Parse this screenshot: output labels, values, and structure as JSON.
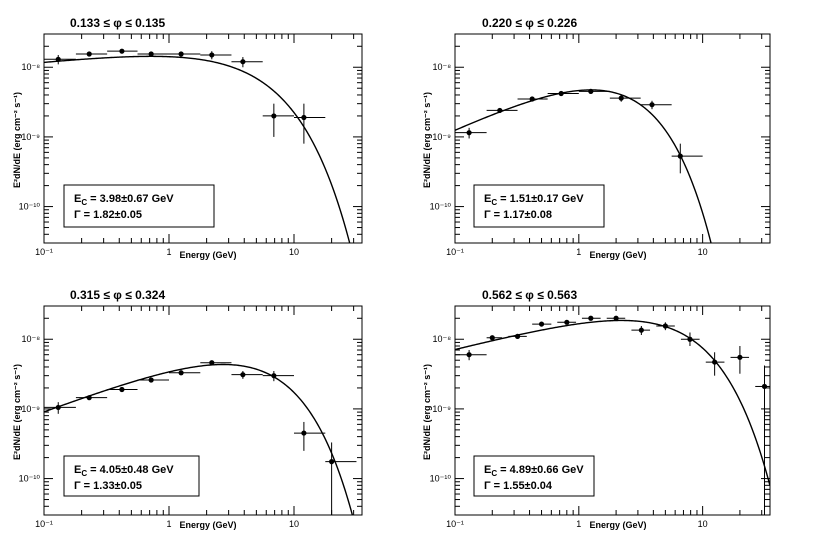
{
  "chart_data": [
    {
      "type": "scatter",
      "title": "0.133 ≤ φ ≤ 0.135",
      "xlabel": "Energy (GeV)",
      "ylabel": "E²dN/dE (erg cm⁻² s⁻¹)",
      "xscale": "log",
      "yscale": "log",
      "xlim": [
        0.1,
        35
      ],
      "ylim": [
        3e-11,
        3e-08
      ],
      "xticks": [
        {
          "v": 0.1,
          "t": "10⁻¹"
        },
        {
          "v": 1,
          "t": "1"
        },
        {
          "v": 10,
          "t": "10"
        }
      ],
      "yticks": [
        {
          "v": 1e-10,
          "t": "10⁻¹⁰"
        },
        {
          "v": 1e-09,
          "t": "10⁻⁹"
        },
        {
          "v": 1e-08,
          "t": "10⁻⁸"
        }
      ],
      "fit": {
        "model": "power-law with exponential cutoff",
        "gamma": 1.82,
        "ecut": 3.98,
        "norm": 1.36e-08,
        "e0": 0.3
      },
      "legend": {
        "line1_prefix": "E",
        "line1_sub": "C",
        "line1_rest": " = 3.98±0.67 GeV",
        "line2": "Γ = 1.82±0.05"
      },
      "points": [
        {
          "x": 0.13,
          "xlo": 0.1,
          "xhi": 0.18,
          "y": 1.3e-08,
          "ylo": 1.1e-08,
          "yhi": 1.5e-08
        },
        {
          "x": 0.23,
          "xlo": 0.18,
          "xhi": 0.32,
          "y": 1.55e-08,
          "ylo": 1.45e-08,
          "yhi": 1.65e-08
        },
        {
          "x": 0.42,
          "xlo": 0.32,
          "xhi": 0.56,
          "y": 1.7e-08,
          "ylo": 1.6e-08,
          "yhi": 1.8e-08
        },
        {
          "x": 0.72,
          "xlo": 0.56,
          "xhi": 1.0,
          "y": 1.55e-08,
          "ylo": 1.45e-08,
          "yhi": 1.65e-08
        },
        {
          "x": 1.25,
          "xlo": 1.0,
          "xhi": 1.78,
          "y": 1.55e-08,
          "ylo": 1.45e-08,
          "yhi": 1.65e-08
        },
        {
          "x": 2.2,
          "xlo": 1.78,
          "xhi": 3.16,
          "y": 1.5e-08,
          "ylo": 1.3e-08,
          "yhi": 1.7e-08
        },
        {
          "x": 3.9,
          "xlo": 3.16,
          "xhi": 5.62,
          "y": 1.2e-08,
          "ylo": 1e-08,
          "yhi": 1.4e-08
        },
        {
          "x": 6.9,
          "xlo": 5.62,
          "xhi": 10,
          "y": 2e-09,
          "ylo": 1e-09,
          "yhi": 3e-09
        },
        {
          "x": 12,
          "xlo": 10,
          "xhi": 17.8,
          "y": 1.9e-09,
          "ylo": 8e-10,
          "yhi": 3e-09
        }
      ]
    },
    {
      "type": "scatter",
      "title": "0.220 ≤ φ ≤ 0.226",
      "xlabel": "Energy (GeV)",
      "ylabel": "E²dN/dE (erg cm⁻² s⁻¹)",
      "xscale": "log",
      "yscale": "log",
      "xlim": [
        0.1,
        35
      ],
      "ylim": [
        3e-11,
        3e-08
      ],
      "xticks": [
        {
          "v": 0.1,
          "t": "10⁻¹"
        },
        {
          "v": 1,
          "t": "1"
        },
        {
          "v": 10,
          "t": "10"
        }
      ],
      "yticks": [
        {
          "v": 1e-10,
          "t": "10⁻¹⁰"
        },
        {
          "v": 1e-09,
          "t": "10⁻⁹"
        },
        {
          "v": 1e-08,
          "t": "10⁻⁸"
        }
      ],
      "fit": {
        "model": "power-law with exponential cutoff",
        "gamma": 1.17,
        "ecut": 1.51,
        "norm": 3.63e-09,
        "e0": 0.5
      },
      "legend": {
        "line1_prefix": "E",
        "line1_sub": "C",
        "line1_rest": " = 1.51±0.17 GeV",
        "line2": "Γ = 1.17±0.08"
      },
      "points": [
        {
          "x": 0.13,
          "xlo": 0.1,
          "xhi": 0.18,
          "y": 1.15e-09,
          "ylo": 9.5e-10,
          "yhi": 1.35e-09
        },
        {
          "x": 0.23,
          "xlo": 0.18,
          "xhi": 0.32,
          "y": 2.4e-09,
          "ylo": 2.2e-09,
          "yhi": 2.6e-09
        },
        {
          "x": 0.42,
          "xlo": 0.32,
          "xhi": 0.56,
          "y": 3.5e-09,
          "ylo": 3.3e-09,
          "yhi": 3.7e-09
        },
        {
          "x": 0.72,
          "xlo": 0.56,
          "xhi": 1.0,
          "y": 4.2e-09,
          "ylo": 4e-09,
          "yhi": 4.4e-09
        },
        {
          "x": 1.25,
          "xlo": 1.0,
          "xhi": 1.78,
          "y": 4.5e-09,
          "ylo": 4.2e-09,
          "yhi": 4.8e-09
        },
        {
          "x": 2.2,
          "xlo": 1.78,
          "xhi": 3.16,
          "y": 3.6e-09,
          "ylo": 3.2e-09,
          "yhi": 4e-09
        },
        {
          "x": 3.9,
          "xlo": 3.16,
          "xhi": 5.62,
          "y": 2.9e-09,
          "ylo": 2.5e-09,
          "yhi": 3.3e-09
        },
        {
          "x": 6.6,
          "xlo": 5.62,
          "xhi": 10,
          "y": 5.3e-10,
          "ylo": 3e-10,
          "yhi": 8e-10
        }
      ]
    },
    {
      "type": "scatter",
      "title": "0.315 ≤ φ ≤ 0.324",
      "xlabel": "Energy (GeV)",
      "ylabel": "E²dN/dE (erg cm⁻² s⁻¹)",
      "xscale": "log",
      "yscale": "log",
      "xlim": [
        0.1,
        35
      ],
      "ylim": [
        3e-11,
        3e-08
      ],
      "xticks": [
        {
          "v": 0.1,
          "t": "10⁻¹"
        },
        {
          "v": 1,
          "t": "1"
        },
        {
          "v": 10,
          "t": "10"
        }
      ],
      "yticks": [
        {
          "v": 1e-10,
          "t": "10⁻¹⁰"
        },
        {
          "v": 1e-09,
          "t": "10⁻⁹"
        },
        {
          "v": 1e-08,
          "t": "10⁻⁸"
        }
      ],
      "fit": {
        "model": "power-law with exponential cutoff",
        "gamma": 1.33,
        "ecut": 4.05,
        "norm": 4.33e-09,
        "e0": 2.5
      },
      "legend": {
        "line1_prefix": "E",
        "line1_sub": "C",
        "line1_rest": " = 4.05±0.48 GeV",
        "line2": "Γ = 1.33±0.05"
      },
      "points": [
        {
          "x": 0.13,
          "xlo": 0.1,
          "xhi": 0.18,
          "y": 1.05e-09,
          "ylo": 8.5e-10,
          "yhi": 1.25e-09
        },
        {
          "x": 0.23,
          "xlo": 0.18,
          "xhi": 0.32,
          "y": 1.45e-09,
          "ylo": 1.35e-09,
          "yhi": 1.55e-09
        },
        {
          "x": 0.42,
          "xlo": 0.32,
          "xhi": 0.56,
          "y": 1.9e-09,
          "ylo": 1.8e-09,
          "yhi": 2e-09
        },
        {
          "x": 0.72,
          "xlo": 0.56,
          "xhi": 1.0,
          "y": 2.6e-09,
          "ylo": 2.4e-09,
          "yhi": 2.8e-09
        },
        {
          "x": 1.25,
          "xlo": 1.0,
          "xhi": 1.78,
          "y": 3.3e-09,
          "ylo": 3.1e-09,
          "yhi": 3.5e-09
        },
        {
          "x": 2.2,
          "xlo": 1.78,
          "xhi": 3.16,
          "y": 4.6e-09,
          "ylo": 4.3e-09,
          "yhi": 4.9e-09
        },
        {
          "x": 3.9,
          "xlo": 3.16,
          "xhi": 5.62,
          "y": 3.1e-09,
          "ylo": 2.7e-09,
          "yhi": 3.5e-09
        },
        {
          "x": 6.9,
          "xlo": 5.62,
          "xhi": 10,
          "y": 3e-09,
          "ylo": 2.5e-09,
          "yhi": 3.5e-09
        },
        {
          "x": 12,
          "xlo": 10,
          "xhi": 17.8,
          "y": 4.5e-10,
          "ylo": 2.5e-10,
          "yhi": 6.5e-10
        },
        {
          "x": 20,
          "xlo": 17.8,
          "xhi": 31.6,
          "y": 1.75e-10,
          "ylo": 2.5e-11,
          "yhi": 3.3e-10
        }
      ]
    },
    {
      "type": "scatter",
      "title": "0.562 ≤ φ ≤ 0.563",
      "xlabel": "Energy (GeV)",
      "ylabel": "E²dN/dE (erg cm⁻² s⁻¹)",
      "xscale": "log",
      "yscale": "log",
      "xlim": [
        0.1,
        35
      ],
      "ylim": [
        3e-11,
        3e-08
      ],
      "xticks": [
        {
          "v": 0.1,
          "t": "10⁻¹"
        },
        {
          "v": 1,
          "t": "1"
        },
        {
          "v": 10,
          "t": "10"
        }
      ],
      "yticks": [
        {
          "v": 1e-10,
          "t": "10⁻¹⁰"
        },
        {
          "v": 1e-09,
          "t": "10⁻⁹"
        },
        {
          "v": 1e-08,
          "t": "10⁻⁸"
        }
      ],
      "fit": {
        "model": "power-law with exponential cutoff",
        "gamma": 1.55,
        "ecut": 4.89,
        "norm": 1.86e-08,
        "e0": 2.2
      },
      "legend": {
        "line1_prefix": "E",
        "line1_sub": "C",
        "line1_rest": " = 4.89±0.66 GeV",
        "line2": "Γ = 1.55±0.04"
      },
      "points": [
        {
          "x": 0.13,
          "xlo": 0.1,
          "xhi": 0.18,
          "y": 6e-09,
          "ylo": 5e-09,
          "yhi": 7e-09
        },
        {
          "x": 0.2,
          "xlo": 0.18,
          "xhi": 0.24,
          "y": 1.05e-08,
          "ylo": 9.8e-09,
          "yhi": 1.12e-08
        },
        {
          "x": 0.32,
          "xlo": 0.27,
          "xhi": 0.38,
          "y": 1.1e-08,
          "ylo": 1.02e-08,
          "yhi": 1.18e-08
        },
        {
          "x": 0.5,
          "xlo": 0.42,
          "xhi": 0.6,
          "y": 1.65e-08,
          "ylo": 1.55e-08,
          "yhi": 1.75e-08
        },
        {
          "x": 0.8,
          "xlo": 0.67,
          "xhi": 0.95,
          "y": 1.75e-08,
          "ylo": 1.65e-08,
          "yhi": 1.85e-08
        },
        {
          "x": 1.25,
          "xlo": 1.06,
          "xhi": 1.5,
          "y": 2e-08,
          "ylo": 1.88e-08,
          "yhi": 2.12e-08
        },
        {
          "x": 2.0,
          "xlo": 1.68,
          "xhi": 2.37,
          "y": 2e-08,
          "ylo": 1.85e-08,
          "yhi": 2.15e-08
        },
        {
          "x": 3.2,
          "xlo": 2.66,
          "xhi": 3.76,
          "y": 1.35e-08,
          "ylo": 1.15e-08,
          "yhi": 1.55e-08
        },
        {
          "x": 5.0,
          "xlo": 4.22,
          "xhi": 5.96,
          "y": 1.55e-08,
          "ylo": 1.35e-08,
          "yhi": 1.75e-08
        },
        {
          "x": 7.9,
          "xlo": 6.68,
          "xhi": 9.45,
          "y": 1e-08,
          "ylo": 8e-09,
          "yhi": 1.25e-08
        },
        {
          "x": 12.5,
          "xlo": 10.6,
          "xhi": 15,
          "y": 4.7e-09,
          "ylo": 3e-09,
          "yhi": 6.5e-09
        },
        {
          "x": 20,
          "xlo": 16.8,
          "xhi": 23.7,
          "y": 5.5e-09,
          "ylo": 3.2e-09,
          "yhi": 8e-09
        },
        {
          "x": 31.6,
          "xlo": 26.6,
          "xhi": 35,
          "y": 2.1e-09,
          "ylo": 3e-11,
          "yhi": 4.2e-09
        }
      ]
    }
  ]
}
